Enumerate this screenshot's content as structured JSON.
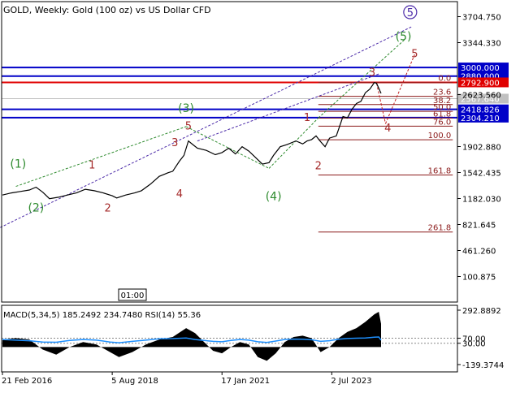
{
  "chart_data": {
    "type": "line",
    "title": "GOLD, Weekly:  Gold (100 oz) vs US Dollar CFD",
    "time_box": "01:00",
    "price_ylim": [
      -150,
      3850
    ],
    "price_ticks": [
      "3704.750",
      "3344.330",
      "2623.560",
      "1902.880",
      "1542.435",
      "1182.030",
      "821.645",
      "461.260",
      "100.875"
    ],
    "price_tick_values": [
      3704.75,
      3344.33,
      2623.56,
      1902.88,
      1542.435,
      1182.03,
      821.645,
      461.26,
      100.875
    ],
    "x_labels": [
      {
        "label": "21 Feb 2016",
        "x": 0.0
      },
      {
        "label": "5 Aug 2018",
        "x": 2.45
      },
      {
        "label": "17 Jan 2021",
        "x": 4.9
      },
      {
        "label": "2 Jul 2023",
        "x": 7.35
      }
    ],
    "x_range": [
      0,
      10.1
    ],
    "last_x": 8.45,
    "series": [
      {
        "values": [
          [
            0.0,
            1230
          ],
          [
            0.2,
            1260
          ],
          [
            0.4,
            1280
          ],
          [
            0.6,
            1300
          ],
          [
            0.75,
            1340
          ],
          [
            0.9,
            1270
          ],
          [
            1.05,
            1180
          ],
          [
            1.25,
            1200
          ],
          [
            1.45,
            1230
          ],
          [
            1.65,
            1260
          ],
          [
            1.85,
            1310
          ],
          [
            2.05,
            1290
          ],
          [
            2.25,
            1260
          ],
          [
            2.45,
            1220
          ],
          [
            2.55,
            1190
          ],
          [
            2.75,
            1230
          ],
          [
            2.95,
            1260
          ],
          [
            3.1,
            1290
          ],
          [
            3.3,
            1380
          ],
          [
            3.5,
            1490
          ],
          [
            3.7,
            1540
          ],
          [
            3.8,
            1560
          ],
          [
            3.95,
            1700
          ],
          [
            4.05,
            1780
          ],
          [
            4.15,
            1980
          ],
          [
            4.25,
            1930
          ],
          [
            4.35,
            1880
          ],
          [
            4.55,
            1850
          ],
          [
            4.75,
            1790
          ],
          [
            4.9,
            1820
          ],
          [
            5.05,
            1880
          ],
          [
            5.2,
            1800
          ],
          [
            5.35,
            1900
          ],
          [
            5.5,
            1840
          ],
          [
            5.65,
            1750
          ],
          [
            5.8,
            1660
          ],
          [
            5.95,
            1680
          ],
          [
            6.05,
            1780
          ],
          [
            6.2,
            1900
          ],
          [
            6.35,
            1930
          ],
          [
            6.55,
            1980
          ],
          [
            6.7,
            1940
          ],
          [
            6.8,
            1980
          ],
          [
            6.9,
            2000
          ],
          [
            7.0,
            2050
          ],
          [
            7.1,
            1970
          ],
          [
            7.2,
            1900
          ],
          [
            7.3,
            2020
          ],
          [
            7.45,
            2050
          ],
          [
            7.6,
            2320
          ],
          [
            7.7,
            2300
          ],
          [
            7.8,
            2420
          ],
          [
            7.9,
            2500
          ],
          [
            8.0,
            2530
          ],
          [
            8.1,
            2650
          ],
          [
            8.2,
            2700
          ],
          [
            8.3,
            2790
          ],
          [
            8.35,
            2780
          ],
          [
            8.45,
            2640
          ]
        ]
      }
    ],
    "horizontal_levels": [
      {
        "y": 3000.0,
        "label": "3000.000",
        "color": "#0000c8",
        "width": 2
      },
      {
        "y": 2880.0,
        "label": "2880.000",
        "color": "#0000c8",
        "width": 2
      },
      {
        "y": 2792.9,
        "label": "2792.900",
        "color": "#e00000",
        "width": 2
      },
      {
        "y": 2567.64,
        "label": "2567.640",
        "color": "#c0c0c0",
        "width": 1
      },
      {
        "y": 2418.826,
        "label": "2418.826",
        "color": "#0000c8",
        "width": 2
      },
      {
        "y": 2304.21,
        "label": "2304.210",
        "color": "#0000c8",
        "width": 2
      }
    ],
    "fib_levels": [
      {
        "label": "0.0",
        "y": 2790
      },
      {
        "label": "23.6",
        "y": 2600
      },
      {
        "label": "38.2",
        "y": 2485
      },
      {
        "label": "50.0",
        "y": 2392
      },
      {
        "label": "61.8",
        "y": 2298
      },
      {
        "label": "76.0",
        "y": 2186
      },
      {
        "label": "100.0",
        "y": 1997
      },
      {
        "label": "161.8",
        "y": 1509
      },
      {
        "label": "261.8",
        "y": 718
      }
    ],
    "fib_x_range": [
      7.05,
      10.05
    ],
    "wave_labels_green": [
      {
        "text": "(1)",
        "x": 0.35,
        "y": 1610
      },
      {
        "text": "(2)",
        "x": 0.75,
        "y": 1000
      },
      {
        "text": "(3)",
        "x": 4.1,
        "y": 2380
      },
      {
        "text": "(4)",
        "x": 6.05,
        "y": 1160
      },
      {
        "text": "(5)",
        "x": 8.95,
        "y": 3380
      }
    ],
    "wave_labels_red": [
      {
        "text": "1",
        "x": 2.0,
        "y": 1600
      },
      {
        "text": "2",
        "x": 2.35,
        "y": 1000
      },
      {
        "text": "3",
        "x": 3.85,
        "y": 1910
      },
      {
        "text": "4",
        "x": 3.95,
        "y": 1200
      },
      {
        "text": "5",
        "x": 4.15,
        "y": 2140
      },
      {
        "text": "1",
        "x": 6.8,
        "y": 2260
      },
      {
        "text": "2",
        "x": 7.05,
        "y": 1590
      },
      {
        "text": "3",
        "x": 8.25,
        "y": 2880
      },
      {
        "text": "4",
        "x": 8.6,
        "y": 2110
      },
      {
        "text": "5",
        "x": 9.2,
        "y": 3140
      }
    ],
    "circle_label": {
      "text": "5",
      "x": 9.1,
      "y": 3710
    },
    "channel_green": [
      [
        [
          0.3,
          1350
        ],
        [
          4.1,
          2180
        ]
      ],
      [
        [
          4.1,
          2180
        ],
        [
          5.95,
          1600
        ]
      ],
      [
        [
          5.95,
          1600
        ],
        [
          7.05,
          2300
        ]
      ],
      [
        [
          7.05,
          2300
        ],
        [
          9.0,
          3400
        ]
      ]
    ],
    "channel_purple": [
      [
        [
          -0.05,
          780
        ],
        [
          9.15,
          3570
        ]
      ],
      [
        [
          4.35,
          1980
        ],
        [
          8.4,
          2910
        ]
      ]
    ],
    "forecast_red": [
      [
        [
          8.35,
          2780
        ],
        [
          8.55,
          2220
        ]
      ],
      [
        [
          8.55,
          2220
        ],
        [
          9.2,
          3180
        ]
      ]
    ],
    "indicator": {
      "label": "MACD(5,34,5) 185.2492 234.7480 RSI(14) 55.36",
      "ylim": [
        -200,
        340
      ],
      "ticks": [
        "292.8892",
        "70.00",
        "30.00",
        "-139.3744"
      ],
      "tick_values": [
        292.89,
        70.0,
        30.0,
        -139.37
      ],
      "macd": [
        [
          0.0,
          60
        ],
        [
          0.3,
          70
        ],
        [
          0.6,
          60
        ],
        [
          0.9,
          -20
        ],
        [
          1.2,
          -60
        ],
        [
          1.5,
          0
        ],
        [
          1.8,
          40
        ],
        [
          2.1,
          20
        ],
        [
          2.4,
          -40
        ],
        [
          2.6,
          -80
        ],
        [
          2.9,
          -40
        ],
        [
          3.2,
          20
        ],
        [
          3.5,
          60
        ],
        [
          3.8,
          80
        ],
        [
          4.1,
          150
        ],
        [
          4.3,
          110
        ],
        [
          4.5,
          40
        ],
        [
          4.7,
          -30
        ],
        [
          4.9,
          -50
        ],
        [
          5.1,
          0
        ],
        [
          5.3,
          40
        ],
        [
          5.5,
          20
        ],
        [
          5.7,
          -80
        ],
        [
          5.9,
          -110
        ],
        [
          6.1,
          -50
        ],
        [
          6.3,
          40
        ],
        [
          6.5,
          80
        ],
        [
          6.7,
          90
        ],
        [
          6.9,
          70
        ],
        [
          7.1,
          -40
        ],
        [
          7.3,
          0
        ],
        [
          7.5,
          70
        ],
        [
          7.7,
          120
        ],
        [
          7.9,
          150
        ],
        [
          8.1,
          200
        ],
        [
          8.3,
          260
        ],
        [
          8.4,
          280
        ],
        [
          8.45,
          185
        ]
      ],
      "rsi": [
        [
          0.0,
          60
        ],
        [
          0.3,
          55
        ],
        [
          0.6,
          50
        ],
        [
          0.9,
          40
        ],
        [
          1.2,
          38
        ],
        [
          1.5,
          52
        ],
        [
          1.8,
          60
        ],
        [
          2.1,
          55
        ],
        [
          2.4,
          40
        ],
        [
          2.6,
          34
        ],
        [
          2.9,
          45
        ],
        [
          3.2,
          55
        ],
        [
          3.5,
          65
        ],
        [
          3.8,
          67
        ],
        [
          4.1,
          72
        ],
        [
          4.3,
          60
        ],
        [
          4.5,
          52
        ],
        [
          4.7,
          45
        ],
        [
          4.9,
          42
        ],
        [
          5.1,
          52
        ],
        [
          5.3,
          60
        ],
        [
          5.5,
          55
        ],
        [
          5.7,
          42
        ],
        [
          5.9,
          36
        ],
        [
          6.1,
          48
        ],
        [
          6.3,
          60
        ],
        [
          6.5,
          63
        ],
        [
          6.7,
          62
        ],
        [
          6.9,
          58
        ],
        [
          7.1,
          45
        ],
        [
          7.3,
          50
        ],
        [
          7.5,
          62
        ],
        [
          7.7,
          68
        ],
        [
          7.9,
          70
        ],
        [
          8.1,
          72
        ],
        [
          8.3,
          78
        ],
        [
          8.4,
          80
        ],
        [
          8.45,
          55
        ]
      ],
      "macd_label": "MACD",
      "rsi_label": "RSI"
    }
  }
}
